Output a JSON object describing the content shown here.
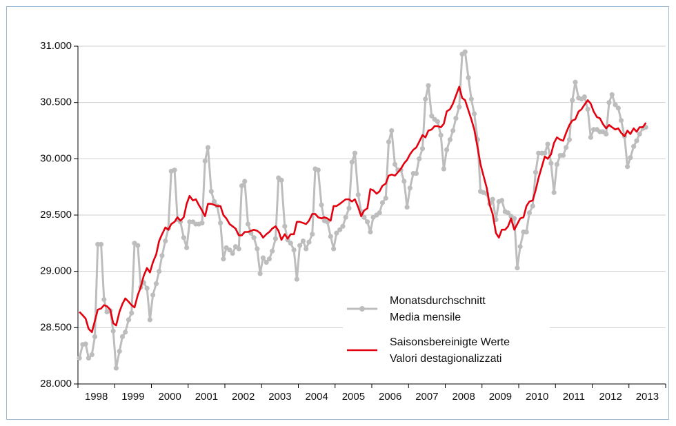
{
  "chart_data": {
    "type": "line",
    "x": [
      1998.04,
      1998.13,
      1998.21,
      1998.29,
      1998.38,
      1998.46,
      1998.54,
      1998.63,
      1998.71,
      1998.79,
      1998.88,
      1998.96,
      1999.04,
      1999.13,
      1999.21,
      1999.29,
      1999.38,
      1999.46,
      1999.54,
      1999.63,
      1999.71,
      1999.79,
      1999.88,
      1999.96,
      2000.04,
      2000.13,
      2000.21,
      2000.29,
      2000.38,
      2000.46,
      2000.54,
      2000.63,
      2000.71,
      2000.79,
      2000.88,
      2000.96,
      2001.04,
      2001.13,
      2001.21,
      2001.29,
      2001.38,
      2001.46,
      2001.54,
      2001.63,
      2001.71,
      2001.79,
      2001.88,
      2001.96,
      2002.04,
      2002.13,
      2002.21,
      2002.29,
      2002.38,
      2002.46,
      2002.54,
      2002.63,
      2002.71,
      2002.79,
      2002.88,
      2002.96,
      2003.04,
      2003.13,
      2003.21,
      2003.29,
      2003.38,
      2003.46,
      2003.54,
      2003.63,
      2003.71,
      2003.79,
      2003.88,
      2003.96,
      2004.04,
      2004.13,
      2004.21,
      2004.29,
      2004.38,
      2004.46,
      2004.54,
      2004.63,
      2004.71,
      2004.79,
      2004.88,
      2004.96,
      2005.04,
      2005.13,
      2005.21,
      2005.29,
      2005.38,
      2005.46,
      2005.54,
      2005.63,
      2005.71,
      2005.79,
      2005.88,
      2005.96,
      2006.04,
      2006.13,
      2006.21,
      2006.29,
      2006.38,
      2006.46,
      2006.54,
      2006.63,
      2006.71,
      2006.79,
      2006.88,
      2006.96,
      2007.04,
      2007.13,
      2007.21,
      2007.29,
      2007.38,
      2007.46,
      2007.54,
      2007.63,
      2007.71,
      2007.79,
      2007.88,
      2007.96,
      2008.04,
      2008.13,
      2008.21,
      2008.29,
      2008.38,
      2008.46,
      2008.54,
      2008.63,
      2008.71,
      2008.79,
      2008.88,
      2008.96,
      2009.04,
      2009.13,
      2009.21,
      2009.29,
      2009.38,
      2009.46,
      2009.54,
      2009.63,
      2009.71,
      2009.79,
      2009.88,
      2009.96,
      2010.04,
      2010.13,
      2010.21,
      2010.29,
      2010.38,
      2010.46,
      2010.54,
      2010.63,
      2010.71,
      2010.79,
      2010.88,
      2010.96,
      2011.04,
      2011.13,
      2011.21,
      2011.29,
      2011.38,
      2011.46,
      2011.54,
      2011.63,
      2011.71,
      2011.79,
      2011.88,
      2011.96,
      2012.04,
      2012.13,
      2012.21,
      2012.29,
      2012.38,
      2012.46,
      2012.54,
      2012.63,
      2012.71,
      2012.79,
      2012.88,
      2012.96,
      2013.04,
      2013.13,
      2013.21,
      2013.29,
      2013.38,
      2013.46
    ],
    "series": [
      {
        "name": [
          "Monatsdurchschnitt",
          "Media mensile"
        ],
        "color": "#bdbdbd",
        "markers": true,
        "values": [
          28230,
          28350,
          28355,
          28230,
          28260,
          28420,
          29240,
          29240,
          28750,
          28640,
          28650,
          28470,
          28140,
          28290,
          28420,
          28460,
          28570,
          28630,
          29250,
          29230,
          28860,
          28900,
          28850,
          28570,
          28790,
          28890,
          29000,
          29140,
          29270,
          29380,
          29890,
          29900,
          29460,
          29440,
          29300,
          29210,
          29440,
          29440,
          29420,
          29420,
          29430,
          29980,
          30100,
          29710,
          29620,
          29580,
          29430,
          29110,
          29210,
          29190,
          29160,
          29220,
          29200,
          29760,
          29800,
          29420,
          29340,
          29300,
          29200,
          28980,
          29120,
          29080,
          29110,
          29180,
          29290,
          29830,
          29810,
          29400,
          29280,
          29250,
          29190,
          28930,
          29230,
          29270,
          29200,
          29260,
          29330,
          29910,
          29900,
          29590,
          29450,
          29440,
          29310,
          29200,
          29340,
          29370,
          29400,
          29480,
          29560,
          29970,
          30050,
          29680,
          29530,
          29480,
          29440,
          29350,
          29480,
          29500,
          29520,
          29610,
          29650,
          30150,
          30250,
          29950,
          29900,
          29900,
          29800,
          29570,
          29740,
          29870,
          29870,
          30000,
          30090,
          30530,
          30650,
          30380,
          30350,
          30330,
          30210,
          29910,
          30080,
          30170,
          30250,
          30360,
          30460,
          30930,
          30950,
          30720,
          30530,
          30400,
          30170,
          29710,
          29700,
          29690,
          29600,
          29640,
          29460,
          29620,
          29630,
          29530,
          29520,
          29490,
          29470,
          29030,
          29220,
          29350,
          29350,
          29520,
          29580,
          29880,
          30050,
          30050,
          30050,
          30130,
          29960,
          29700,
          29950,
          30030,
          30030,
          30100,
          30170,
          30520,
          30680,
          30540,
          30530,
          30550,
          30440,
          30190,
          30260,
          30260,
          30240,
          30240,
          30220,
          30500,
          30570,
          30480,
          30450,
          30340,
          30200,
          29930,
          30010,
          30110,
          30160,
          30220,
          30270,
          30280
        ]
      },
      {
        "name": [
          "Saisonsbereinigte Werte",
          "Valori destagionalizzati"
        ],
        "color": "#e3000f",
        "markers": false,
        "values": [
          28640,
          28610,
          28580,
          28490,
          28460,
          28560,
          28660,
          28670,
          28700,
          28690,
          28660,
          28540,
          28520,
          28640,
          28710,
          28760,
          28730,
          28700,
          28680,
          28790,
          28860,
          28960,
          29030,
          28990,
          29080,
          29150,
          29270,
          29330,
          29390,
          29370,
          29420,
          29440,
          29480,
          29450,
          29480,
          29600,
          29670,
          29630,
          29640,
          29590,
          29540,
          29490,
          29600,
          29600,
          29590,
          29580,
          29580,
          29500,
          29470,
          29420,
          29400,
          29380,
          29320,
          29320,
          29350,
          29350,
          29360,
          29370,
          29360,
          29340,
          29300,
          29330,
          29350,
          29380,
          29400,
          29360,
          29280,
          29330,
          29290,
          29330,
          29330,
          29440,
          29440,
          29430,
          29420,
          29450,
          29510,
          29510,
          29480,
          29470,
          29480,
          29470,
          29450,
          29580,
          29580,
          29600,
          29620,
          29640,
          29640,
          29620,
          29640,
          29570,
          29490,
          29540,
          29560,
          29730,
          29720,
          29690,
          29710,
          29760,
          29780,
          29850,
          29860,
          29850,
          29880,
          29910,
          29960,
          29990,
          30040,
          30080,
          30100,
          30150,
          30210,
          30190,
          30250,
          30260,
          30290,
          30290,
          30280,
          30310,
          30420,
          30440,
          30490,
          30560,
          30640,
          30540,
          30520,
          30430,
          30350,
          30260,
          30100,
          29950,
          29850,
          29740,
          29590,
          29510,
          29340,
          29300,
          29370,
          29370,
          29400,
          29470,
          29370,
          29420,
          29470,
          29480,
          29580,
          29620,
          29630,
          29720,
          29830,
          29930,
          30020,
          30000,
          30040,
          30140,
          30190,
          30170,
          30160,
          30230,
          30300,
          30340,
          30350,
          30420,
          30440,
          30480,
          30520,
          30490,
          30420,
          30370,
          30360,
          30310,
          30270,
          30300,
          30280,
          30260,
          30270,
          30230,
          30200,
          30250,
          30220,
          30270,
          30240,
          30280,
          30280,
          30320
        ]
      }
    ],
    "categories": [
      "1998",
      "1999",
      "2000",
      "2001",
      "2002",
      "2003",
      "2004",
      "2005",
      "2006",
      "2007",
      "2008",
      "2009",
      "2010",
      "2011",
      "2012",
      "2013"
    ],
    "xlim": [
      1998,
      2014
    ],
    "xticks": [
      1998,
      1999,
      2000,
      2001,
      2002,
      2003,
      2004,
      2005,
      2006,
      2007,
      2008,
      2009,
      2010,
      2011,
      2012,
      2013,
      2014
    ],
    "ylim": [
      28000,
      31000
    ],
    "yticks": [
      {
        "value": 28000,
        "label": "28.000"
      },
      {
        "value": 28500,
        "label": "28.500"
      },
      {
        "value": 29000,
        "label": "29.000"
      },
      {
        "value": 29500,
        "label": "29.500"
      },
      {
        "value": 30000,
        "label": "30.000"
      },
      {
        "value": 30500,
        "label": "30.500"
      },
      {
        "value": 31000,
        "label": "31.000"
      }
    ],
    "grid": true,
    "legend": "lower-right"
  }
}
